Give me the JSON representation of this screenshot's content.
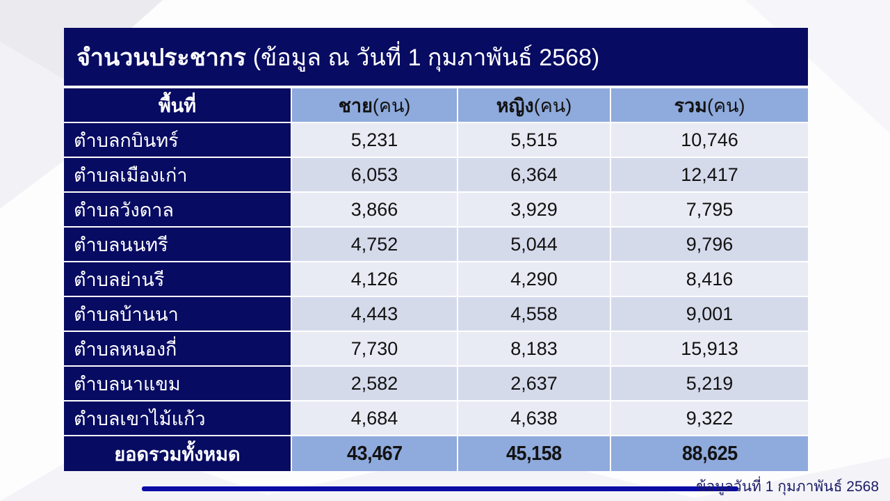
{
  "title": {
    "bold": "จำนวนประชากร",
    "rest": "(ข้อมูล ณ วันที่ 1 กุมภาพันธ์ 2568)"
  },
  "table": {
    "columns": [
      {
        "bold": "พื้นที่",
        "rest": ""
      },
      {
        "bold": "ชาย",
        "rest": "(คน)"
      },
      {
        "bold": "หญิง",
        "rest": "(คน)"
      },
      {
        "bold": "รวม",
        "rest": "(คน)"
      }
    ],
    "rows": [
      {
        "area": "ตำบลกบินทร์",
        "male": "5,231",
        "female": "5,515",
        "total": "10,746"
      },
      {
        "area": "ตำบลเมืองเก่า",
        "male": "6,053",
        "female": "6,364",
        "total": "12,417"
      },
      {
        "area": "ตำบลวังดาล",
        "male": "3,866",
        "female": "3,929",
        "total": "7,795"
      },
      {
        "area": "ตำบลนนทรี",
        "male": "4,752",
        "female": "5,044",
        "total": "9,796"
      },
      {
        "area": "ตำบลย่านรี",
        "male": "4,126",
        "female": "4,290",
        "total": "8,416"
      },
      {
        "area": "ตำบลบ้านนา",
        "male": "4,443",
        "female": "4,558",
        "total": "9,001"
      },
      {
        "area": "ตำบลหนองกี่",
        "male": "7,730",
        "female": "8,183",
        "total": "15,913"
      },
      {
        "area": "ตำบลนาแขม",
        "male": "2,582",
        "female": "2,637",
        "total": "5,219"
      },
      {
        "area": "ตำบลเขาไม้แก้ว",
        "male": "4,684",
        "female": "4,638",
        "total": "9,322"
      }
    ],
    "total_row": {
      "label": "ยอดรวมทั้งหมด",
      "male": "43,467",
      "female": "45,158",
      "total": "88,625"
    }
  },
  "footer": {
    "note": "ข้อมูลวันที่ 1 กุมภาพันธ์ 2568"
  },
  "colors": {
    "navy": "#080b62",
    "header_blue": "#8faadc",
    "row_light": "#e9ebf4",
    "row_alt": "#d5daeb",
    "line_blue": "#0b0ba6",
    "footer_text": "#1a1a66"
  }
}
